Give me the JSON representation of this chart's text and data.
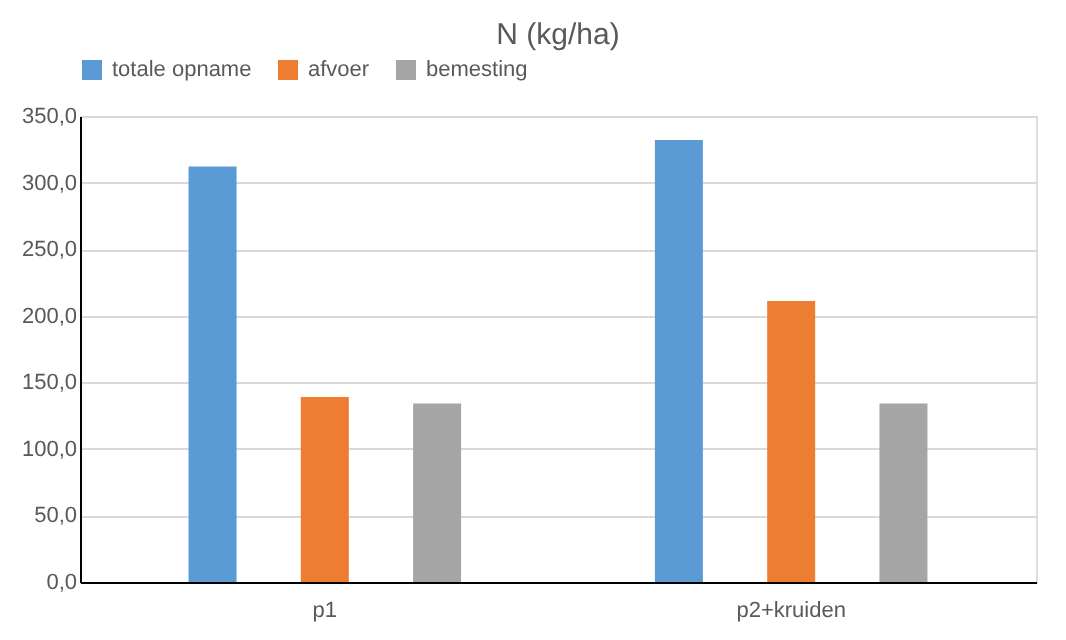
{
  "chart_data": {
    "type": "bar",
    "title": "N (kg/ha)",
    "categories": [
      "p1",
      "p2+kruiden"
    ],
    "series": [
      {
        "name": "totale opname",
        "color": "#5b9bd5",
        "values": [
          312,
          332
        ]
      },
      {
        "name": "afvoer",
        "color": "#ed7d31",
        "values": [
          139,
          211
        ]
      },
      {
        "name": "bemesting",
        "color": "#a5a5a5",
        "values": [
          134,
          134
        ]
      }
    ],
    "ylim": [
      0,
      350
    ],
    "yticks": [
      {
        "value": 0,
        "label": "0,0"
      },
      {
        "value": 50,
        "label": "50,0"
      },
      {
        "value": 100,
        "label": "100,0"
      },
      {
        "value": 150,
        "label": "150,0"
      },
      {
        "value": 200,
        "label": "200,0"
      },
      {
        "value": 250,
        "label": "250,0"
      },
      {
        "value": 300,
        "label": "300,0"
      },
      {
        "value": 350,
        "label": "350,0"
      }
    ],
    "grid": "y",
    "legend": "top"
  }
}
